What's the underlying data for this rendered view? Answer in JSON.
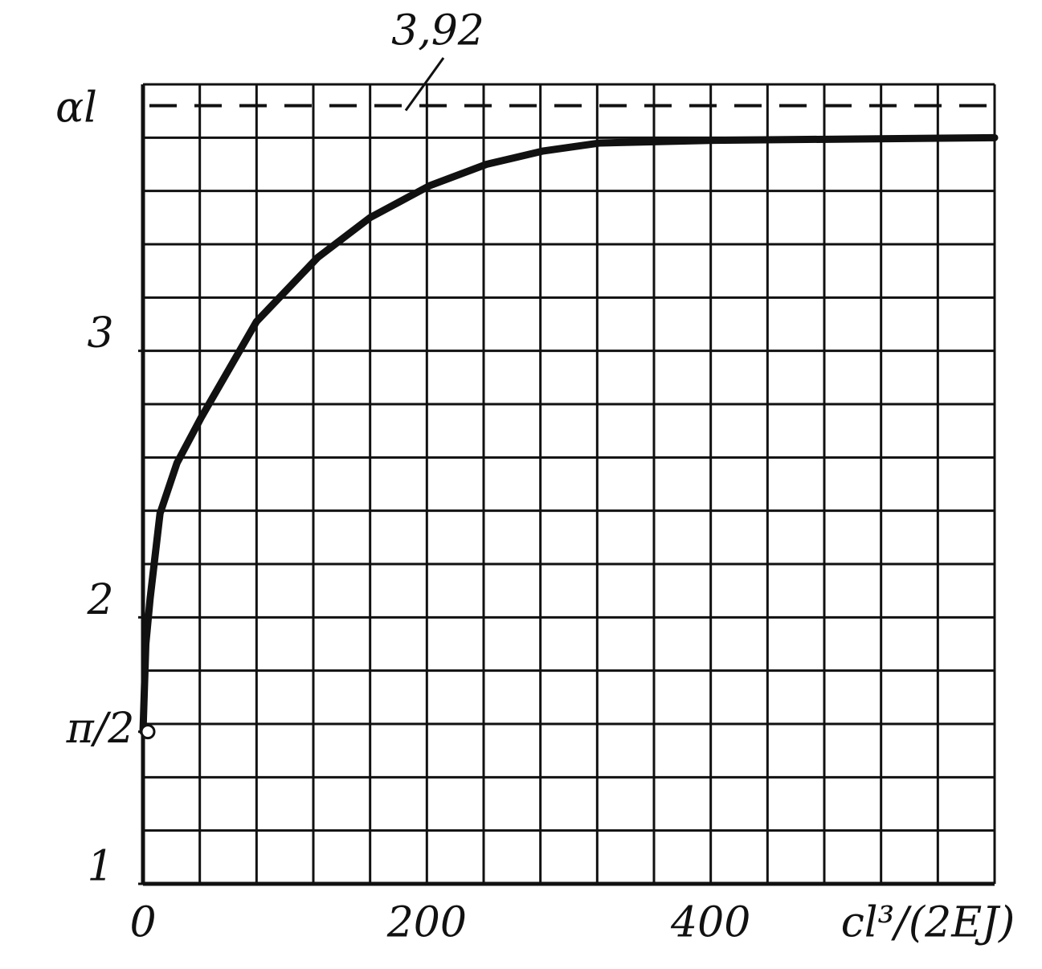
{
  "chart_data": {
    "type": "line",
    "y_label": "αl",
    "x_label": "cl³/(2EJ)",
    "x": [
      0,
      2,
      5,
      12,
      24,
      41,
      80,
      123,
      160,
      202,
      242,
      282,
      322,
      402,
      600
    ],
    "series": [
      {
        "color": "#111111",
        "values": [
          1.571,
          1.9,
          2.07,
          2.39,
          2.58,
          2.75,
          3.11,
          3.35,
          3.5,
          3.62,
          3.7,
          3.75,
          3.78,
          3.79,
          3.8
        ]
      }
    ],
    "asymptote": {
      "value": 3.92,
      "label": "3,92"
    },
    "xlim": [
      0,
      600
    ],
    "ylim": [
      1,
      4
    ],
    "xticks": [
      0,
      200,
      400
    ],
    "yticks": [
      1,
      {
        "value": 1.5708,
        "label": "π/2"
      },
      2,
      3
    ],
    "xminorticks": [
      0,
      40,
      80,
      120,
      160,
      200,
      240,
      280,
      320,
      360,
      400,
      440,
      480,
      520,
      560,
      600
    ],
    "yminorticks": [
      1,
      1.2,
      1.4,
      1.6,
      1.8,
      2,
      2.2,
      2.4,
      2.6,
      2.8,
      3,
      3.2,
      3.4,
      3.6,
      3.8,
      4
    ],
    "grid": true
  }
}
